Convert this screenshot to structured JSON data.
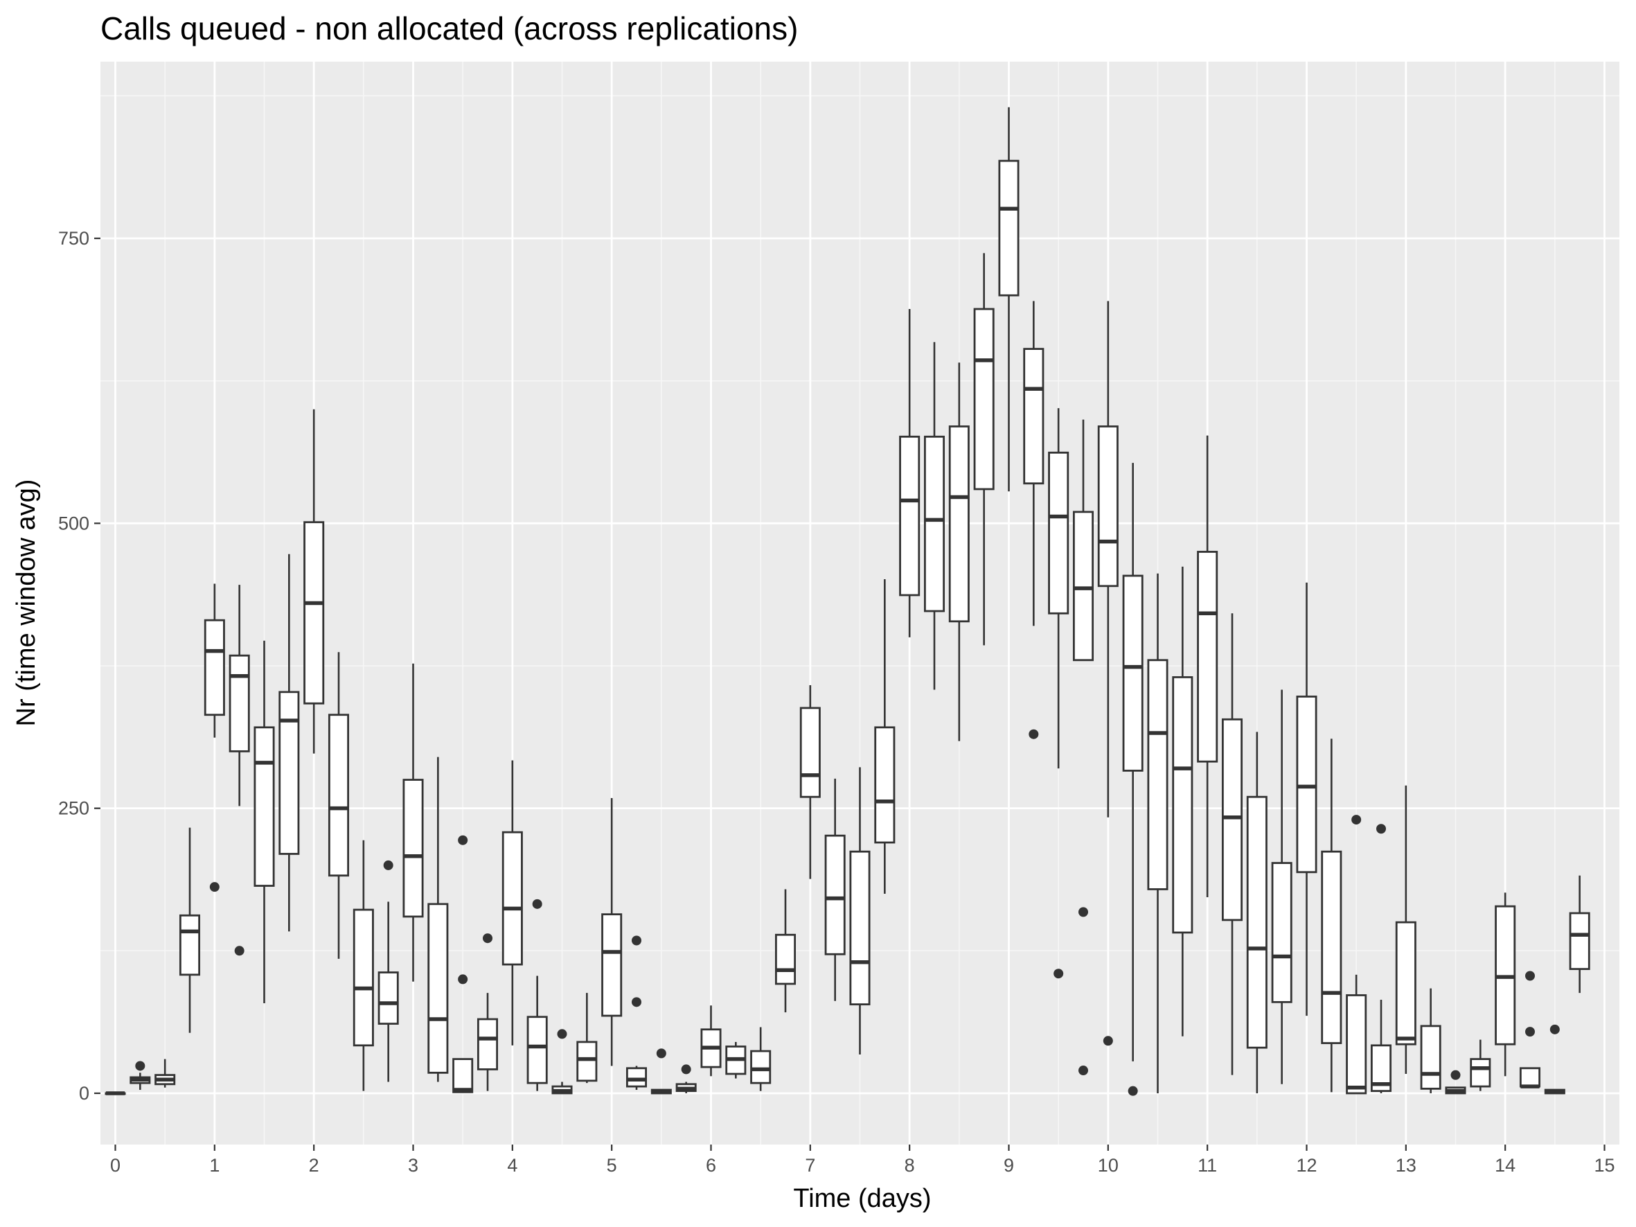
{
  "chart_data": {
    "type": "boxplot",
    "title": "Calls queued - non allocated (across replications)",
    "xlabel": "Time (days)",
    "ylabel": "Nr (time window avg)",
    "xlim": [
      -0.15,
      15.15
    ],
    "ylim": [
      -45,
      905
    ],
    "x_ticks": [
      0,
      1,
      2,
      3,
      4,
      5,
      6,
      7,
      8,
      9,
      10,
      11,
      12,
      13,
      14,
      15
    ],
    "y_ticks": [
      0,
      250,
      500,
      750
    ],
    "grid": true,
    "legend": "none",
    "colors": {
      "panel_background": "#ebebeb",
      "grid_major": "#ffffff",
      "grid_minor": "#f7f7f7",
      "box_fill": "#ffffff",
      "box_line": "#333333",
      "outlier": "#333333",
      "tick_text": "#4d4d4d"
    },
    "box_width_days": 0.19,
    "boxes": [
      {
        "x": 0.0,
        "lower": 0,
        "q1": 0,
        "median": 0,
        "q3": 0,
        "upper": 0,
        "outliers": []
      },
      {
        "x": 0.25,
        "lower": 3,
        "q1": 9,
        "median": 12,
        "q3": 14,
        "upper": 18,
        "outliers": [
          24
        ]
      },
      {
        "x": 0.5,
        "lower": 5,
        "q1": 8,
        "median": 12,
        "q3": 16,
        "upper": 30,
        "outliers": []
      },
      {
        "x": 0.75,
        "lower": 53,
        "q1": 104,
        "median": 142,
        "q3": 156,
        "upper": 233,
        "outliers": []
      },
      {
        "x": 1.0,
        "lower": 312,
        "q1": 332,
        "median": 388,
        "q3": 415,
        "upper": 447,
        "outliers": [
          181
        ]
      },
      {
        "x": 1.25,
        "lower": 252,
        "q1": 300,
        "median": 366,
        "q3": 384,
        "upper": 446,
        "outliers": [
          125
        ]
      },
      {
        "x": 1.5,
        "lower": 79,
        "q1": 182,
        "median": 290,
        "q3": 321,
        "upper": 397,
        "outliers": []
      },
      {
        "x": 1.75,
        "lower": 142,
        "q1": 210,
        "median": 327,
        "q3": 352,
        "upper": 473,
        "outliers": []
      },
      {
        "x": 2.0,
        "lower": 298,
        "q1": 342,
        "median": 430,
        "q3": 501,
        "upper": 600,
        "outliers": []
      },
      {
        "x": 2.25,
        "lower": 118,
        "q1": 191,
        "median": 250,
        "q3": 332,
        "upper": 387,
        "outliers": []
      },
      {
        "x": 2.5,
        "lower": 2,
        "q1": 42,
        "median": 92,
        "q3": 161,
        "upper": 222,
        "outliers": []
      },
      {
        "x": 2.75,
        "lower": 10,
        "q1": 61,
        "median": 79,
        "q3": 106,
        "upper": 168,
        "outliers": [
          200
        ]
      },
      {
        "x": 3.0,
        "lower": 98,
        "q1": 155,
        "median": 208,
        "q3": 275,
        "upper": 377,
        "outliers": []
      },
      {
        "x": 3.25,
        "lower": 10,
        "q1": 18,
        "median": 65,
        "q3": 166,
        "upper": 295,
        "outliers": []
      },
      {
        "x": 3.5,
        "lower": 1,
        "q1": 1,
        "median": 3,
        "q3": 30,
        "upper": 30,
        "outliers": [
          222,
          100
        ]
      },
      {
        "x": 3.75,
        "lower": 2,
        "q1": 21,
        "median": 48,
        "q3": 65,
        "upper": 88,
        "outliers": [
          136
        ]
      },
      {
        "x": 4.0,
        "lower": 42,
        "q1": 113,
        "median": 162,
        "q3": 229,
        "upper": 292,
        "outliers": []
      },
      {
        "x": 4.25,
        "lower": 2,
        "q1": 9,
        "median": 41,
        "q3": 67,
        "upper": 103,
        "outliers": [
          166
        ]
      },
      {
        "x": 4.5,
        "lower": 0,
        "q1": 0,
        "median": 2,
        "q3": 6,
        "upper": 10,
        "outliers": [
          52
        ]
      },
      {
        "x": 4.75,
        "lower": 9,
        "q1": 11,
        "median": 30,
        "q3": 45,
        "upper": 88,
        "outliers": []
      },
      {
        "x": 5.0,
        "lower": 24,
        "q1": 68,
        "median": 124,
        "q3": 157,
        "upper": 259,
        "outliers": []
      },
      {
        "x": 5.25,
        "lower": 3,
        "q1": 6,
        "median": 12,
        "q3": 22,
        "upper": 24,
        "outliers": [
          134,
          80
        ]
      },
      {
        "x": 5.5,
        "lower": 0,
        "q1": 0,
        "median": 1,
        "q3": 3,
        "upper": 3,
        "outliers": [
          35
        ]
      },
      {
        "x": 5.75,
        "lower": 0,
        "q1": 2,
        "median": 4,
        "q3": 8,
        "upper": 10,
        "outliers": [
          21
        ]
      },
      {
        "x": 6.0,
        "lower": 15,
        "q1": 23,
        "median": 40,
        "q3": 56,
        "upper": 77,
        "outliers": []
      },
      {
        "x": 6.25,
        "lower": 13,
        "q1": 17,
        "median": 30,
        "q3": 41,
        "upper": 45,
        "outliers": []
      },
      {
        "x": 6.5,
        "lower": 2,
        "q1": 9,
        "median": 21,
        "q3": 37,
        "upper": 58,
        "outliers": []
      },
      {
        "x": 6.75,
        "lower": 71,
        "q1": 96,
        "median": 108,
        "q3": 139,
        "upper": 179,
        "outliers": []
      },
      {
        "x": 7.0,
        "lower": 188,
        "q1": 260,
        "median": 279,
        "q3": 338,
        "upper": 358,
        "outliers": []
      },
      {
        "x": 7.25,
        "lower": 81,
        "q1": 122,
        "median": 171,
        "q3": 226,
        "upper": 276,
        "outliers": []
      },
      {
        "x": 7.5,
        "lower": 34,
        "q1": 78,
        "median": 115,
        "q3": 212,
        "upper": 286,
        "outliers": []
      },
      {
        "x": 7.75,
        "lower": 175,
        "q1": 220,
        "median": 256,
        "q3": 321,
        "upper": 451,
        "outliers": []
      },
      {
        "x": 8.0,
        "lower": 400,
        "q1": 437,
        "median": 520,
        "q3": 576,
        "upper": 688,
        "outliers": []
      },
      {
        "x": 8.25,
        "lower": 354,
        "q1": 423,
        "median": 503,
        "q3": 576,
        "upper": 659,
        "outliers": []
      },
      {
        "x": 8.5,
        "lower": 309,
        "q1": 414,
        "median": 523,
        "q3": 585,
        "upper": 641,
        "outliers": []
      },
      {
        "x": 8.75,
        "lower": 393,
        "q1": 530,
        "median": 643,
        "q3": 688,
        "upper": 737,
        "outliers": []
      },
      {
        "x": 9.0,
        "lower": 528,
        "q1": 700,
        "median": 776,
        "q3": 818,
        "upper": 865,
        "outliers": []
      },
      {
        "x": 9.25,
        "lower": 410,
        "q1": 535,
        "median": 618,
        "q3": 653,
        "upper": 695,
        "outliers": [
          315
        ]
      },
      {
        "x": 9.5,
        "lower": 285,
        "q1": 421,
        "median": 506,
        "q3": 562,
        "upper": 601,
        "outliers": [
          105
        ]
      },
      {
        "x": 9.75,
        "lower": 384,
        "q1": 380,
        "median": 443,
        "q3": 510,
        "upper": 591,
        "outliers": [
          159,
          20
        ]
      },
      {
        "x": 10.0,
        "lower": 242,
        "q1": 445,
        "median": 484,
        "q3": 585,
        "upper": 695,
        "outliers": [
          46
        ]
      },
      {
        "x": 10.25,
        "lower": 28,
        "q1": 283,
        "median": 374,
        "q3": 454,
        "upper": 553,
        "outliers": [
          2
        ]
      },
      {
        "x": 10.5,
        "lower": 0,
        "q1": 179,
        "median": 316,
        "q3": 380,
        "upper": 456,
        "outliers": []
      },
      {
        "x": 10.75,
        "lower": 50,
        "q1": 141,
        "median": 285,
        "q3": 365,
        "upper": 462,
        "outliers": []
      },
      {
        "x": 11.0,
        "lower": 172,
        "q1": 291,
        "median": 421,
        "q3": 475,
        "upper": 577,
        "outliers": []
      },
      {
        "x": 11.25,
        "lower": 16,
        "q1": 152,
        "median": 242,
        "q3": 328,
        "upper": 421,
        "outliers": []
      },
      {
        "x": 11.5,
        "lower": 0,
        "q1": 40,
        "median": 127,
        "q3": 260,
        "upper": 317,
        "outliers": []
      },
      {
        "x": 11.75,
        "lower": 8,
        "q1": 80,
        "median": 120,
        "q3": 202,
        "upper": 354,
        "outliers": []
      },
      {
        "x": 12.0,
        "lower": 68,
        "q1": 194,
        "median": 269,
        "q3": 348,
        "upper": 448,
        "outliers": []
      },
      {
        "x": 12.25,
        "lower": 1,
        "q1": 44,
        "median": 88,
        "q3": 212,
        "upper": 311,
        "outliers": []
      },
      {
        "x": 12.5,
        "lower": 0,
        "q1": 0,
        "median": 5,
        "q3": 86,
        "upper": 104,
        "outliers": [
          240
        ]
      },
      {
        "x": 12.75,
        "lower": 0,
        "q1": 2,
        "median": 8,
        "q3": 42,
        "upper": 82,
        "outliers": [
          232
        ]
      },
      {
        "x": 13.0,
        "lower": 17,
        "q1": 43,
        "median": 48,
        "q3": 150,
        "upper": 270,
        "outliers": []
      },
      {
        "x": 13.25,
        "lower": 0,
        "q1": 4,
        "median": 17,
        "q3": 59,
        "upper": 92,
        "outliers": []
      },
      {
        "x": 13.5,
        "lower": 0,
        "q1": 0,
        "median": 2,
        "q3": 5,
        "upper": 5,
        "outliers": [
          16
        ]
      },
      {
        "x": 13.75,
        "lower": 2,
        "q1": 6,
        "median": 22,
        "q3": 30,
        "upper": 47,
        "outliers": []
      },
      {
        "x": 14.0,
        "lower": 15,
        "q1": 43,
        "median": 102,
        "q3": 164,
        "upper": 176,
        "outliers": []
      },
      {
        "x": 14.25,
        "lower": 6,
        "q1": 6,
        "median": 6,
        "q3": 22,
        "upper": 22,
        "outliers": [
          103,
          54
        ]
      },
      {
        "x": 14.5,
        "lower": 0,
        "q1": 0,
        "median": 1,
        "q3": 3,
        "upper": 3,
        "outliers": [
          56
        ]
      },
      {
        "x": 14.75,
        "lower": 88,
        "q1": 109,
        "median": 139,
        "q3": 158,
        "upper": 191,
        "outliers": []
      }
    ]
  }
}
